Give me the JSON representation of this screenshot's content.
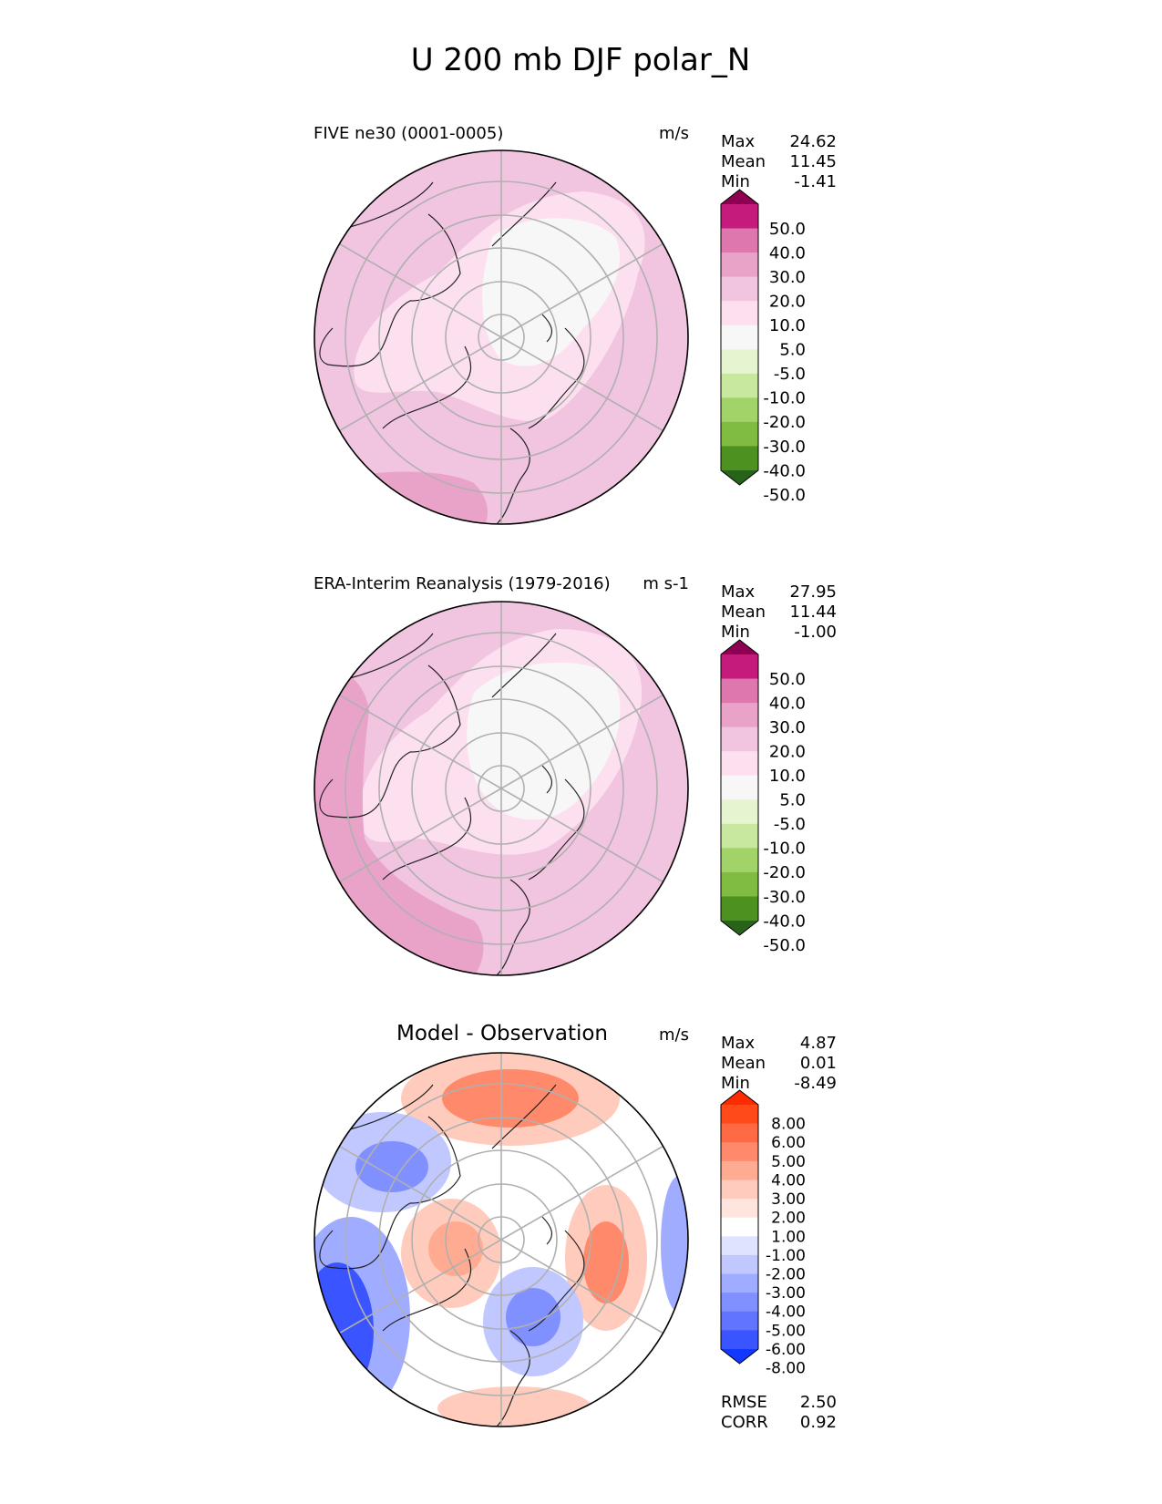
{
  "title": "U 200 mb DJF polar_N",
  "chart_data": [
    {
      "type": "heatmap",
      "panel": "test",
      "title": "FIVE ne30 (0001-0005)",
      "units": "m/s",
      "stats": {
        "max": "24.62",
        "mean": "11.45",
        "min": "-1.41"
      },
      "stat_labels": {
        "max": "Max",
        "mean": "Mean",
        "min": "Min"
      },
      "colorbar": {
        "labels": [
          "50.0",
          "40.0",
          "30.0",
          "20.0",
          "10.0",
          "5.0",
          "-5.0",
          "-10.0",
          "-20.0",
          "-30.0",
          "-40.0",
          "-50.0"
        ],
        "colors": [
          "#8e0152",
          "#c51b7d",
          "#de77ae",
          "#e9a3c9",
          "#f1c4e0",
          "#fde0ef",
          "#f7f7f7",
          "#e6f5d0",
          "#c7e89e",
          "#a1d368",
          "#7fbc41",
          "#4d9221",
          "#276419"
        ]
      }
    },
    {
      "type": "heatmap",
      "panel": "reference",
      "title": "ERA-Interim Reanalysis (1979-2016)",
      "units": "m s-1",
      "stats": {
        "max": "27.95",
        "mean": "11.44",
        "min": "-1.00"
      },
      "stat_labels": {
        "max": "Max",
        "mean": "Mean",
        "min": "Min"
      },
      "colorbar": {
        "labels": [
          "50.0",
          "40.0",
          "30.0",
          "20.0",
          "10.0",
          "5.0",
          "-5.0",
          "-10.0",
          "-20.0",
          "-30.0",
          "-40.0",
          "-50.0"
        ],
        "colors": [
          "#8e0152",
          "#c51b7d",
          "#de77ae",
          "#e9a3c9",
          "#f1c4e0",
          "#fde0ef",
          "#f7f7f7",
          "#e6f5d0",
          "#c7e89e",
          "#a1d368",
          "#7fbc41",
          "#4d9221",
          "#276419"
        ]
      }
    },
    {
      "type": "heatmap",
      "panel": "difference",
      "title": "Model - Observation",
      "units": "m/s",
      "stats": {
        "max": "4.87",
        "mean": "0.01",
        "min": "-8.49"
      },
      "stat_labels": {
        "max": "Max",
        "mean": "Mean",
        "min": "Min"
      },
      "colorbar": {
        "labels": [
          "8.00",
          "6.00",
          "5.00",
          "4.00",
          "3.00",
          "2.00",
          "1.00",
          "-1.00",
          "-2.00",
          "-3.00",
          "-4.00",
          "-5.00",
          "-6.00",
          "-8.00"
        ],
        "colors": [
          "#ff2a00",
          "#ff4a1a",
          "#ff6a45",
          "#ff8a6b",
          "#ffab92",
          "#ffcbbc",
          "#ffe5de",
          "#ffffff",
          "#dfe3ff",
          "#c0c8ff",
          "#a0acff",
          "#8090ff",
          "#6074ff",
          "#3a55ff",
          "#1038ff"
        ]
      },
      "metrics": {
        "rmse_label": "RMSE",
        "rmse": "2.50",
        "corr_label": "CORR",
        "corr": "0.92"
      }
    }
  ]
}
